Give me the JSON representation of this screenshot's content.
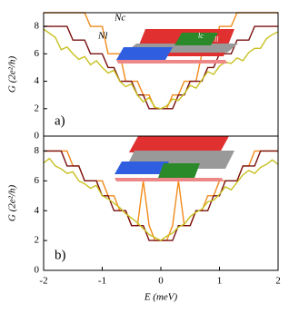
{
  "chart_data": [
    {
      "type": "line",
      "label": "a)",
      "ylabel": "G (2e²/h)",
      "annotations": [
        "Nc",
        "Nl",
        "lc",
        "ll"
      ],
      "x": [
        -2,
        -1.9,
        -1.8,
        -1.7,
        -1.6,
        -1.5,
        -1.4,
        -1.3,
        -1.2,
        -1.1,
        -1,
        -0.9,
        -0.8,
        -0.7,
        -0.6,
        -0.5,
        -0.4,
        -0.3,
        -0.2,
        -0.1,
        0,
        0.1,
        0.2,
        0.3,
        0.4,
        0.5,
        0.6,
        0.7,
        0.8,
        0.9,
        1,
        1.1,
        1.2,
        1.3,
        1.4,
        1.5,
        1.6,
        1.7,
        1.8,
        1.9,
        2
      ],
      "xlim": [
        -2,
        2
      ],
      "ylim": [
        0,
        9
      ],
      "yticks": [
        0,
        2,
        4,
        6,
        8
      ],
      "series": [
        {
          "color": "#f28a1a",
          "values": [
            9,
            9,
            9,
            9,
            9,
            9,
            9,
            9,
            8,
            8,
            8,
            6,
            6,
            6,
            4,
            4,
            4,
            3,
            3,
            2,
            2,
            2,
            3,
            3,
            4,
            4,
            4,
            6,
            6,
            6,
            8,
            8,
            8,
            9,
            9,
            9,
            9,
            9,
            9,
            9,
            9
          ]
        },
        {
          "color": "#7a1010",
          "values": [
            8,
            8,
            8,
            8,
            8,
            7,
            7,
            7,
            6,
            6,
            6,
            5,
            5,
            4,
            4,
            4,
            3,
            3,
            2,
            2,
            2,
            2,
            2,
            3,
            3,
            4,
            4,
            4,
            5,
            5,
            6,
            6,
            6,
            7,
            7,
            7,
            8,
            8,
            8,
            8,
            8
          ]
        },
        {
          "color": "#c8c020",
          "values": [
            7.8,
            7.5,
            7.2,
            6.3,
            6.5,
            6,
            5.6,
            5.8,
            5.2,
            5.5,
            5,
            4.6,
            4.8,
            4,
            3.6,
            3.8,
            3,
            2.5,
            2.8,
            2.1,
            2,
            2.2,
            2.7,
            2.6,
            3.1,
            3.7,
            3.5,
            4.1,
            4.7,
            4.5,
            5.1,
            5.4,
            5.3,
            5.7,
            5.5,
            6.1,
            6.4,
            6.4,
            7.1,
            7.4,
            7.6
          ]
        }
      ]
    },
    {
      "type": "line",
      "label": "b)",
      "ylabel": "G (2e²/h)",
      "xlabel": "E (meV)",
      "x": [
        -2,
        -1.9,
        -1.8,
        -1.7,
        -1.6,
        -1.5,
        -1.4,
        -1.3,
        -1.2,
        -1.1,
        -1,
        -0.9,
        -0.8,
        -0.7,
        -0.6,
        -0.5,
        -0.4,
        -0.3,
        -0.2,
        -0.1,
        0,
        0.1,
        0.2,
        0.3,
        0.4,
        0.5,
        0.6,
        0.7,
        0.8,
        0.9,
        1,
        1.1,
        1.2,
        1.3,
        1.4,
        1.5,
        1.6,
        1.7,
        1.8,
        1.9,
        2
      ],
      "xlim": [
        -2,
        2
      ],
      "ylim": [
        0,
        9
      ],
      "xticks": [
        -2,
        -1,
        0,
        1,
        2
      ],
      "yticks": [
        0,
        2,
        4,
        6,
        8
      ],
      "series": [
        {
          "color": "#f28a1a",
          "values": [
            8,
            8,
            8,
            8,
            8,
            7,
            7,
            6,
            6,
            6,
            6,
            5,
            5,
            4,
            4,
            3,
            3,
            6,
            3,
            2,
            2,
            2,
            3,
            6,
            3,
            3,
            4,
            4,
            5,
            5,
            6,
            6,
            6,
            6,
            7,
            7,
            8,
            8,
            8,
            8,
            8
          ]
        },
        {
          "color": "#7a1010",
          "values": [
            8,
            8,
            8,
            8,
            7,
            7,
            7,
            6,
            6,
            6,
            5,
            5,
            4,
            4,
            4,
            3,
            3,
            3,
            2,
            2,
            2,
            2,
            2,
            3,
            3,
            3,
            4,
            4,
            4,
            5,
            5,
            6,
            6,
            6,
            7,
            7,
            7,
            8,
            8,
            8,
            8
          ]
        },
        {
          "color": "#c8c020",
          "values": [
            7.2,
            7.5,
            7,
            6.8,
            6.5,
            6.6,
            6,
            5.8,
            5.5,
            5.7,
            5,
            4.8,
            4.5,
            4.2,
            3.8,
            3.5,
            3.2,
            2.8,
            2.4,
            2.2,
            2,
            2.3,
            2.5,
            2.9,
            3.1,
            3.6,
            3.9,
            4.1,
            4.6,
            4.7,
            5.1,
            5.6,
            5.4,
            5.9,
            6.4,
            6.7,
            6.5,
            6.9,
            7.1,
            7.4,
            7.1
          ]
        }
      ]
    }
  ]
}
